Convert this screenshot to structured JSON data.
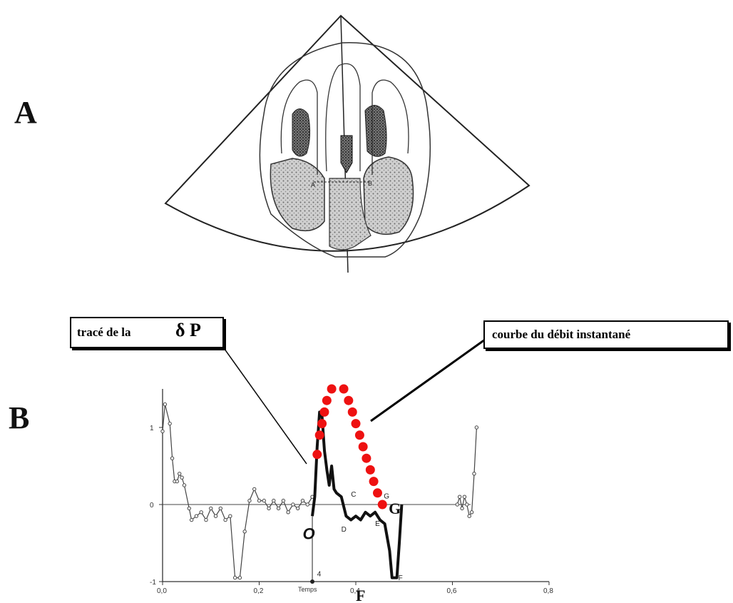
{
  "panels": {
    "a_label": "A",
    "b_label": "B"
  },
  "echo_markers": {
    "left": "A",
    "right": "B"
  },
  "callouts": {
    "dp_trace": "tracé de la ",
    "dp_symbol": "δ P",
    "flow_curve": "courbe du débit instantané"
  },
  "chart_data": {
    "type": "line",
    "xlabel": "Temps",
    "xlim": [
      0,
      0.8
    ],
    "ylim": [
      -1,
      1.5
    ],
    "x_ticks": [
      "0,0",
      "0,2",
      "0,4",
      "0,6",
      "0,8"
    ],
    "y_ticks": [
      "1",
      "0",
      "-1"
    ],
    "marker_labels": [
      "C",
      "D",
      "E",
      "G",
      "F",
      "4"
    ],
    "point_labels": {
      "origin": "O",
      "end": "G",
      "min": "F"
    },
    "series": [
      {
        "values_xy": [
          [
            0.0,
            0.95
          ],
          [
            0.005,
            1.3
          ],
          [
            0.015,
            1.05
          ],
          [
            0.02,
            0.6
          ],
          [
            0.025,
            0.3
          ],
          [
            0.03,
            0.3
          ],
          [
            0.035,
            0.4
          ],
          [
            0.04,
            0.35
          ],
          [
            0.045,
            0.25
          ],
          [
            0.055,
            -0.05
          ],
          [
            0.06,
            -0.2
          ],
          [
            0.07,
            -0.15
          ],
          [
            0.08,
            -0.1
          ],
          [
            0.09,
            -0.2
          ],
          [
            0.1,
            -0.05
          ],
          [
            0.11,
            -0.15
          ],
          [
            0.12,
            -0.05
          ],
          [
            0.13,
            -0.2
          ],
          [
            0.14,
            -0.15
          ],
          [
            0.15,
            -0.95
          ],
          [
            0.16,
            -0.95
          ],
          [
            0.17,
            -0.35
          ],
          [
            0.18,
            0.05
          ],
          [
            0.19,
            0.2
          ],
          [
            0.2,
            0.05
          ],
          [
            0.21,
            0.05
          ],
          [
            0.22,
            -0.05
          ],
          [
            0.23,
            0.05
          ],
          [
            0.24,
            -0.05
          ],
          [
            0.25,
            0.05
          ],
          [
            0.26,
            -0.1
          ],
          [
            0.27,
            0.0
          ],
          [
            0.28,
            -0.05
          ],
          [
            0.29,
            0.05
          ],
          [
            0.3,
            0.0
          ],
          [
            0.31,
            0.1
          ]
        ]
      },
      {
        "values_xy": [
          [
            0.31,
            -0.15
          ],
          [
            0.315,
            0.1
          ],
          [
            0.32,
            0.75
          ],
          [
            0.325,
            1.2
          ],
          [
            0.33,
            1.15
          ],
          [
            0.335,
            0.7
          ],
          [
            0.34,
            0.45
          ],
          [
            0.345,
            0.25
          ],
          [
            0.35,
            0.5
          ],
          [
            0.355,
            0.2
          ],
          [
            0.36,
            0.15
          ],
          [
            0.37,
            0.1
          ],
          [
            0.38,
            -0.15
          ],
          [
            0.39,
            -0.2
          ],
          [
            0.4,
            -0.15
          ],
          [
            0.41,
            -0.2
          ],
          [
            0.42,
            -0.1
          ],
          [
            0.43,
            -0.15
          ],
          [
            0.44,
            -0.1
          ],
          [
            0.45,
            -0.2
          ],
          [
            0.46,
            -0.25
          ],
          [
            0.47,
            -0.6
          ],
          [
            0.475,
            -0.95
          ],
          [
            0.485,
            -0.95
          ],
          [
            0.49,
            -0.5
          ],
          [
            0.495,
            0.0
          ]
        ]
      },
      {
        "values_xy": [
          [
            0.32,
            0.65
          ],
          [
            0.325,
            0.9
          ],
          [
            0.33,
            1.05
          ],
          [
            0.335,
            1.2
          ],
          [
            0.34,
            1.35
          ],
          [
            0.35,
            1.5
          ],
          [
            0.375,
            1.5
          ],
          [
            0.385,
            1.35
          ],
          [
            0.393,
            1.2
          ],
          [
            0.4,
            1.05
          ],
          [
            0.408,
            0.9
          ],
          [
            0.415,
            0.75
          ],
          [
            0.422,
            0.6
          ],
          [
            0.43,
            0.45
          ],
          [
            0.437,
            0.3
          ],
          [
            0.445,
            0.15
          ],
          [
            0.455,
            0.0
          ]
        ]
      },
      {
        "values_xy": [
          [
            0.61,
            0.0
          ],
          [
            0.615,
            0.1
          ],
          [
            0.62,
            -0.05
          ],
          [
            0.625,
            0.1
          ],
          [
            0.63,
            0.0
          ],
          [
            0.635,
            -0.15
          ],
          [
            0.64,
            -0.1
          ],
          [
            0.645,
            0.4
          ],
          [
            0.65,
            1.0
          ]
        ]
      }
    ]
  }
}
